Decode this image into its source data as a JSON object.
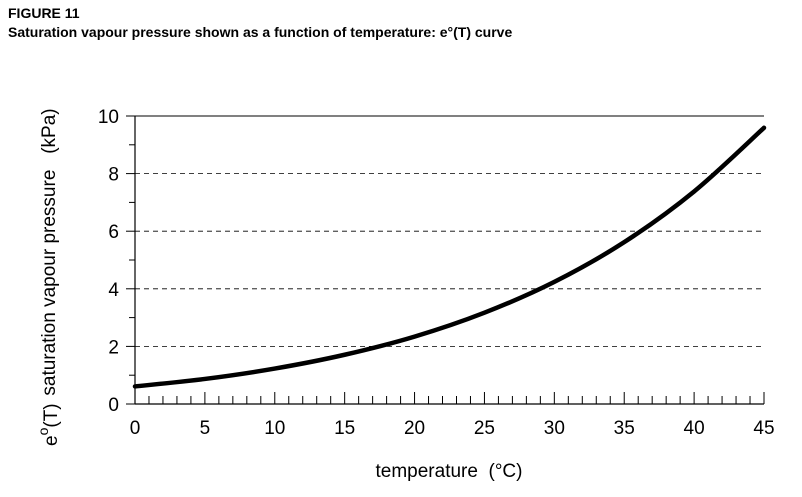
{
  "figure": {
    "label": "FIGURE 11",
    "title": "Saturation vapour pressure shown as a function of temperature: e°(T) curve"
  },
  "chart_data": {
    "type": "line",
    "title": "Saturation vapour pressure shown as a function of temperature: e°(T) curve",
    "xlabel": "temperature  (°C)",
    "ylabel": "saturation vapour pressure   (kPa)",
    "ylabel_symbol": "e",
    "ylabel_symbol_sup": "o",
    "ylabel_symbol_arg": "(T)",
    "xlim": [
      0,
      45
    ],
    "ylim": [
      0,
      10
    ],
    "x_ticks": [
      0,
      5,
      10,
      15,
      20,
      25,
      30,
      35,
      40,
      45
    ],
    "y_ticks": [
      0,
      2,
      4,
      6,
      8,
      10
    ],
    "x_minor_step": 1,
    "y_minor_step": 1,
    "grid": "horizontal dashed",
    "series": [
      {
        "x": [
          0,
          5,
          10,
          15,
          20,
          25,
          30,
          35,
          40,
          45
        ],
        "y": [
          0.61,
          0.87,
          1.23,
          1.71,
          2.34,
          3.17,
          4.24,
          5.62,
          7.38,
          9.59
        ],
        "color": "#000000"
      }
    ]
  }
}
